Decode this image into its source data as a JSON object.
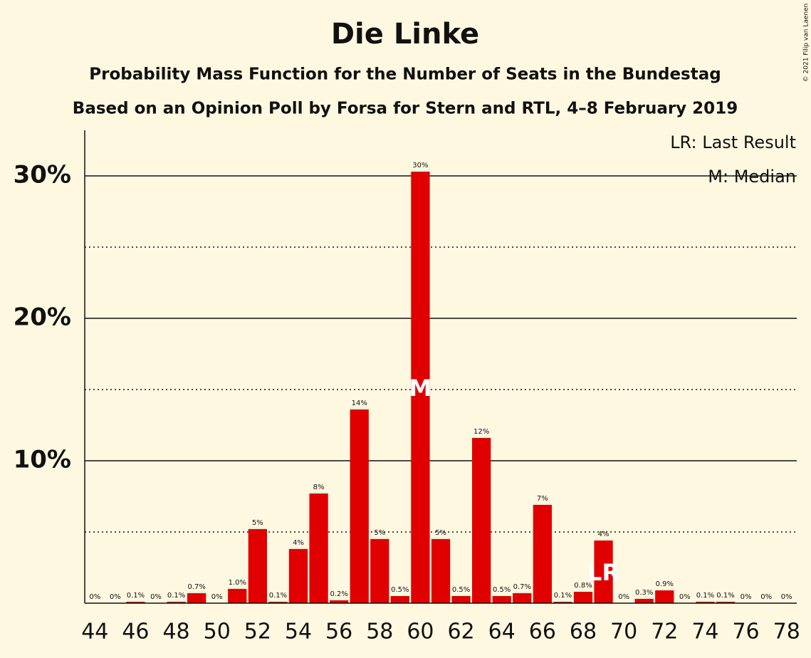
{
  "chart_data": {
    "type": "bar",
    "title": "Die Linke",
    "subtitle": "Probability Mass Function for the Number of Seats in the Bundestag",
    "subtitle2": "Based on an Opinion Poll by Forsa for Stern and RTL, 4–8 February 2019",
    "copyright": "© 2021 Filip van Laenen",
    "x": [
      44,
      45,
      46,
      47,
      48,
      49,
      50,
      51,
      52,
      53,
      54,
      55,
      56,
      57,
      58,
      59,
      60,
      61,
      62,
      63,
      64,
      65,
      66,
      67,
      68,
      69,
      70,
      71,
      72,
      73,
      74,
      75,
      76,
      77,
      78
    ],
    "values": [
      0,
      0,
      0.1,
      0,
      0.1,
      0.7,
      0,
      1.0,
      5.2,
      0.1,
      3.8,
      7.7,
      0.2,
      13.6,
      4.5,
      0.5,
      30.3,
      4.5,
      0.5,
      11.6,
      0.5,
      0.7,
      6.9,
      0.1,
      0.8,
      4.4,
      0,
      0.3,
      0.9,
      0,
      0.1,
      0.1,
      0,
      0,
      0
    ],
    "value_labels": [
      "0%",
      "0%",
      "0.1%",
      "0%",
      "0.1%",
      "0.7%",
      "0%",
      "1.0%",
      "5%",
      "0.1%",
      "4%",
      "8%",
      "0.2%",
      "14%",
      "5%",
      "0.5%",
      "30%",
      "5%",
      "0.5%",
      "12%",
      "0.5%",
      "0.7%",
      "7%",
      "0.1%",
      "0.8%",
      "4%",
      "0%",
      "0.3%",
      "0.9%",
      "0%",
      "0.1%",
      "0.1%",
      "0%",
      "0%",
      "0%"
    ],
    "color": "#e00000",
    "xlim": [
      43.5,
      78.5
    ],
    "xticks": [
      44,
      46,
      48,
      50,
      52,
      54,
      56,
      58,
      60,
      62,
      64,
      66,
      68,
      70,
      72,
      74,
      76,
      78
    ],
    "ylim": [
      0,
      33.2
    ],
    "yticks": [
      {
        "value": 10,
        "label": "10%"
      },
      {
        "value": 20,
        "label": "20%"
      },
      {
        "value": 30,
        "label": "30%"
      }
    ],
    "minor_yticks": [
      5,
      15,
      25
    ],
    "grid": true,
    "median_x": 60,
    "median_label": "M",
    "last_result_x": 69,
    "last_result_label": "LR",
    "legend": [
      "LR: Last Result",
      "M: Median"
    ]
  }
}
